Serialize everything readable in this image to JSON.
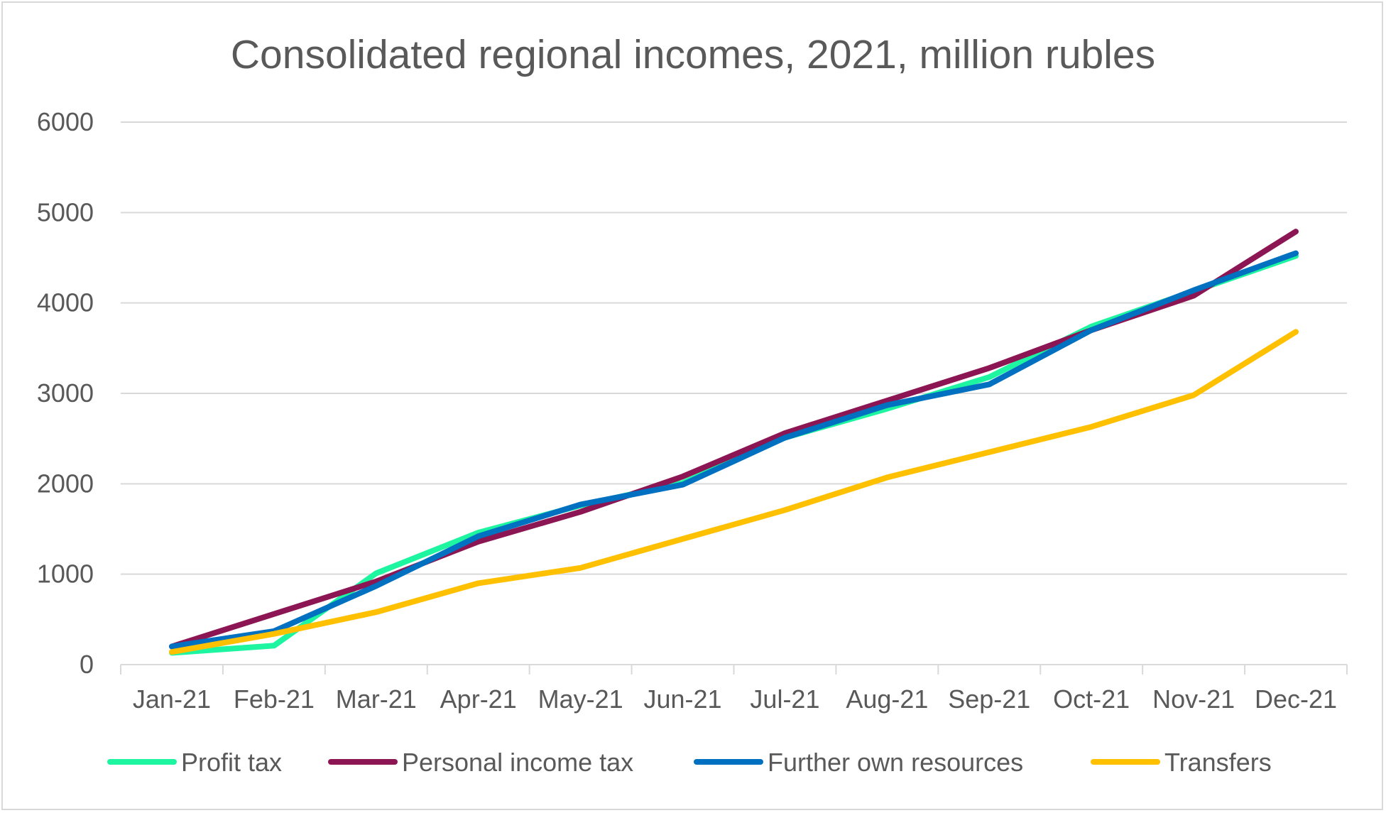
{
  "chart_data": {
    "type": "line",
    "title": "Consolidated regional incomes, 2021, million rubles",
    "xlabel": "",
    "ylabel": "",
    "ylim": [
      0,
      6000
    ],
    "yticks": [
      0,
      1000,
      2000,
      3000,
      4000,
      5000,
      6000
    ],
    "grid": true,
    "legend_position": "bottom",
    "categories": [
      "Jan-21",
      "Feb-21",
      "Mar-21",
      "Apr-21",
      "May-21",
      "Jun-21",
      "Jul-21",
      "Aug-21",
      "Sep-21",
      "Oct-21",
      "Nov-21",
      "Dec-21"
    ],
    "series": [
      {
        "name": "Profit tax",
        "color": "#1ef5a0",
        "values": [
          130,
          210,
          1010,
          1460,
          1760,
          2010,
          2510,
          2830,
          3180,
          3740,
          4130,
          4520
        ]
      },
      {
        "name": "Personal income tax",
        "color": "#8b1653",
        "values": [
          200,
          560,
          920,
          1360,
          1690,
          2080,
          2560,
          2920,
          3280,
          3700,
          4080,
          4790
        ]
      },
      {
        "name": "Further own resources",
        "color": "#0070c0",
        "values": [
          200,
          370,
          870,
          1420,
          1770,
          1990,
          2510,
          2870,
          3100,
          3700,
          4140,
          4550
        ]
      },
      {
        "name": "Transfers",
        "color": "#ffc000",
        "values": [
          140,
          340,
          580,
          900,
          1070,
          1390,
          1710,
          2070,
          2350,
          2630,
          2980,
          3680
        ]
      }
    ]
  }
}
